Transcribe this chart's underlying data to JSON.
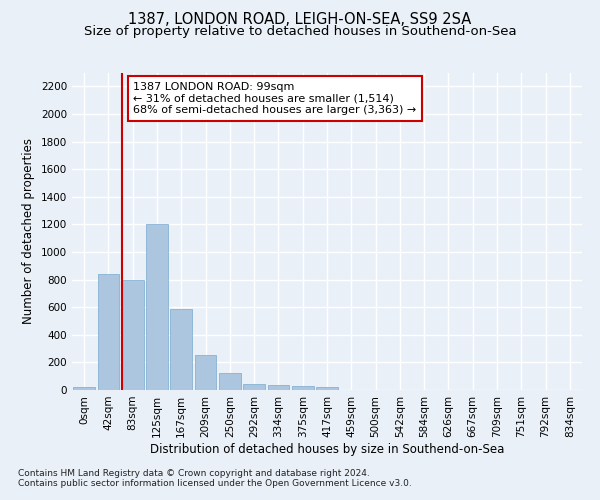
{
  "title1": "1387, LONDON ROAD, LEIGH-ON-SEA, SS9 2SA",
  "title2": "Size of property relative to detached houses in Southend-on-Sea",
  "xlabel": "Distribution of detached houses by size in Southend-on-Sea",
  "ylabel": "Number of detached properties",
  "footnote1": "Contains HM Land Registry data © Crown copyright and database right 2024.",
  "footnote2": "Contains public sector information licensed under the Open Government Licence v3.0.",
  "bar_labels": [
    "0sqm",
    "42sqm",
    "83sqm",
    "125sqm",
    "167sqm",
    "209sqm",
    "250sqm",
    "292sqm",
    "334sqm",
    "375sqm",
    "417sqm",
    "459sqm",
    "500sqm",
    "542sqm",
    "584sqm",
    "626sqm",
    "667sqm",
    "709sqm",
    "751sqm",
    "792sqm",
    "834sqm"
  ],
  "bar_values": [
    20,
    840,
    800,
    1200,
    590,
    255,
    120,
    40,
    35,
    30,
    20,
    0,
    0,
    0,
    0,
    0,
    0,
    0,
    0,
    0,
    0
  ],
  "bar_color": "#adc6e0",
  "bar_edgecolor": "#7aaacf",
  "highlight_color": "#cc0000",
  "annotation_text": "1387 LONDON ROAD: 99sqm\n← 31% of detached houses are smaller (1,514)\n68% of semi-detached houses are larger (3,363) →",
  "annotation_box_color": "#ffffff",
  "annotation_box_edgecolor": "#cc0000",
  "ylim": [
    0,
    2300
  ],
  "yticks": [
    0,
    200,
    400,
    600,
    800,
    1000,
    1200,
    1400,
    1600,
    1800,
    2000,
    2200
  ],
  "bg_color": "#eaf0f8",
  "plot_bg_color": "#eaf0f8",
  "grid_color": "#ffffff",
  "title1_fontsize": 10.5,
  "title2_fontsize": 9.5,
  "xlabel_fontsize": 8.5,
  "ylabel_fontsize": 8.5,
  "tick_fontsize": 7.5,
  "annotation_fontsize": 8.0
}
